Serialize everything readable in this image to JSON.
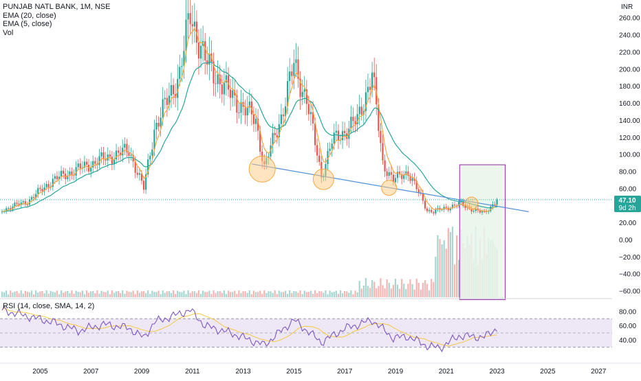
{
  "legend": {
    "symbol": "PUNJAB NATL BANK, 1M, NSE",
    "ema20": "EMA (20, close)",
    "ema5": "EMA (5, close)",
    "vol": "Vol",
    "rsi": "RSI (14, close, SMA, 14, 2)"
  },
  "colors": {
    "up": "#26a69a",
    "down": "#ef5350",
    "ema20": "#26a69a",
    "ema5": "#f5a742",
    "trendline": "#4f8fd8",
    "circle_fill": "#ffcc80",
    "circle_stroke": "#f5a742",
    "box_fill": "#e8f5e9",
    "box_stroke": "#9c27b0",
    "rsi_line": "#7e57c2",
    "rsi_ma": "#f5c842",
    "rsi_band": "#ede7f6",
    "price_badge": "#26a69a"
  },
  "price_axis": {
    "currency": "INR",
    "ticks": [
      "260.00",
      "240.00",
      "220.00",
      "200.00",
      "180.00",
      "160.00",
      "140.00",
      "120.00",
      "100.00",
      "80.00",
      "60.00",
      "20.00",
      "0.00",
      "−20.00",
      "−40.00",
      "−60.00"
    ],
    "last_price": "47.10",
    "countdown": "9d 2h"
  },
  "rsi_axis": {
    "ticks": [
      "80.00",
      "60.00",
      "40.00"
    ]
  },
  "time_axis": {
    "labels": [
      "2005",
      "2007",
      "2009",
      "2011",
      "2013",
      "2015",
      "2017",
      "2019",
      "2021",
      "2023",
      "2025",
      "2027"
    ]
  },
  "chart_data": {
    "type": "candlestick",
    "interval": "1M",
    "x_start": "2003-06",
    "close_anchors": [
      [
        "2003-06",
        35
      ],
      [
        "2004-06",
        45
      ],
      [
        "2005-06",
        70
      ],
      [
        "2006-06",
        83
      ],
      [
        "2007-06",
        95
      ],
      [
        "2008-06",
        105
      ],
      [
        "2009-01",
        60
      ],
      [
        "2009-06",
        130
      ],
      [
        "2010-06",
        195
      ],
      [
        "2010-11",
        265
      ],
      [
        "2011-06",
        210
      ],
      [
        "2012-06",
        170
      ],
      [
        "2013-06",
        140
      ],
      [
        "2013-10",
        85
      ],
      [
        "2014-06",
        145
      ],
      [
        "2014-12",
        205
      ],
      [
        "2015-06",
        165
      ],
      [
        "2016-01",
        75
      ],
      [
        "2016-06",
        115
      ],
      [
        "2017-06",
        140
      ],
      [
        "2018-01",
        195
      ],
      [
        "2018-06",
        90
      ],
      [
        "2018-11",
        70
      ],
      [
        "2019-06",
        80
      ],
      [
        "2020-03",
        35
      ],
      [
        "2020-06",
        33
      ],
      [
        "2021-06",
        42
      ],
      [
        "2022-06",
        31
      ],
      [
        "2022-12",
        47
      ]
    ],
    "ema20": "EMA (20, close)",
    "ema5": "EMA (5, close)",
    "trendline": [
      [
        "2013-04",
        89
      ],
      [
        "2024-03",
        33
      ]
    ],
    "circles": [
      [
        "2013-09",
        83
      ],
      [
        "2016-02",
        71
      ],
      [
        "2018-09",
        61
      ],
      [
        "2021-12",
        43
      ]
    ],
    "projection_box": {
      "x": [
        "2021-07",
        "2022-12"
      ],
      "y": [
        -70,
        88
      ]
    },
    "last_price": 47.1,
    "rsi": {
      "params": "RSI (14, close, SMA, 14, 2)",
      "anchors": [
        [
          "2003-06",
          82
        ],
        [
          "2005-06",
          65
        ],
        [
          "2006-06",
          53
        ],
        [
          "2007-06",
          62
        ],
        [
          "2008-06",
          57
        ],
        [
          "2009-01",
          43
        ],
        [
          "2009-06",
          65
        ],
        [
          "2010-11",
          82
        ],
        [
          "2011-06",
          60
        ],
        [
          "2012-06",
          50
        ],
        [
          "2013-10",
          33
        ],
        [
          "2014-12",
          68
        ],
        [
          "2016-01",
          37
        ],
        [
          "2016-12",
          56
        ],
        [
          "2018-01",
          68
        ],
        [
          "2018-11",
          43
        ],
        [
          "2019-06",
          45
        ],
        [
          "2020-03",
          32
        ],
        [
          "2020-09",
          29
        ],
        [
          "2021-06",
          46
        ],
        [
          "2022-06",
          44
        ],
        [
          "2022-12",
          57
        ]
      ],
      "bands": [
        30,
        50,
        70
      ],
      "ylim": [
        25,
        85
      ]
    }
  }
}
